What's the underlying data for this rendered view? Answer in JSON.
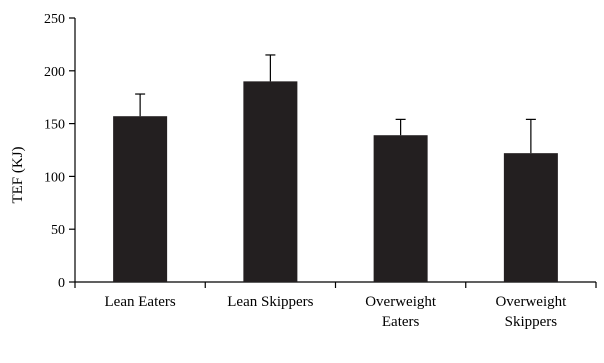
{
  "chart_data": {
    "type": "bar",
    "title": "",
    "xlabel": "",
    "ylabel": "TEF (KJ)",
    "ylim": [
      0,
      250
    ],
    "yticks": [
      0,
      50,
      100,
      150,
      200,
      250
    ],
    "grid": false,
    "legend": "none",
    "categories": [
      [
        "Lean Eaters"
      ],
      [
        "Lean Skippers"
      ],
      [
        "Overweight",
        "Eaters"
      ],
      [
        "Overweight",
        "Skippers"
      ]
    ],
    "values": [
      157,
      190,
      139,
      122
    ],
    "error_upper": [
      178,
      215,
      154,
      154
    ],
    "colors": {
      "bar": "#231f20",
      "axis": "#000000"
    }
  }
}
